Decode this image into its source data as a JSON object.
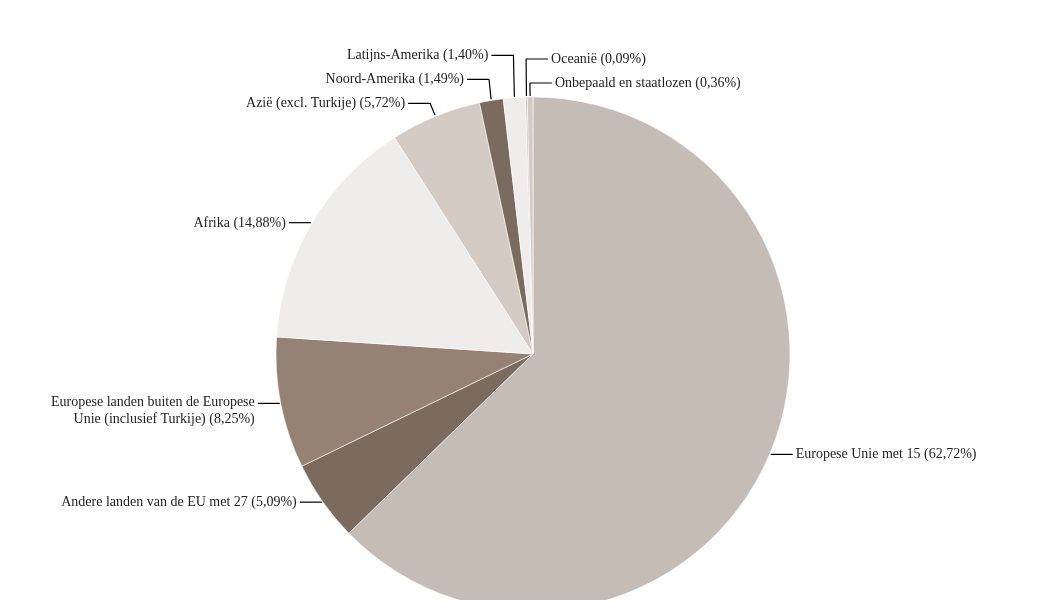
{
  "chart_data": {
    "type": "pie",
    "categories": [
      "Europese Unie met 15",
      "Andere landen van de EU met 27",
      "Europese landen buiten de Europese Unie (inclusief Turkije)",
      "Afrika",
      "Azië (excl. Turkije)",
      "Noord-Amerika",
      "Latijns-Amerika",
      "Oceanië",
      "Onbepaald en staatlozen"
    ],
    "values": [
      62.72,
      5.09,
      8.25,
      14.88,
      5.72,
      1.49,
      1.4,
      0.09,
      0.36
    ],
    "value_labels": [
      "(62,72%)",
      "(5,09%)",
      "(8,25%)",
      "(14,88%)",
      "(5,72%)",
      "(1,49%)",
      "(1,40%)",
      "(0,09%)",
      "(0,36%)"
    ],
    "colors": [
      "#c5bcb6",
      "#7b6b5e",
      "#958274",
      "#efedeb",
      "#d5cbc5",
      "#7b6b5e",
      "#efedeb",
      "#b5aaa2",
      "#d5cbc5"
    ]
  }
}
